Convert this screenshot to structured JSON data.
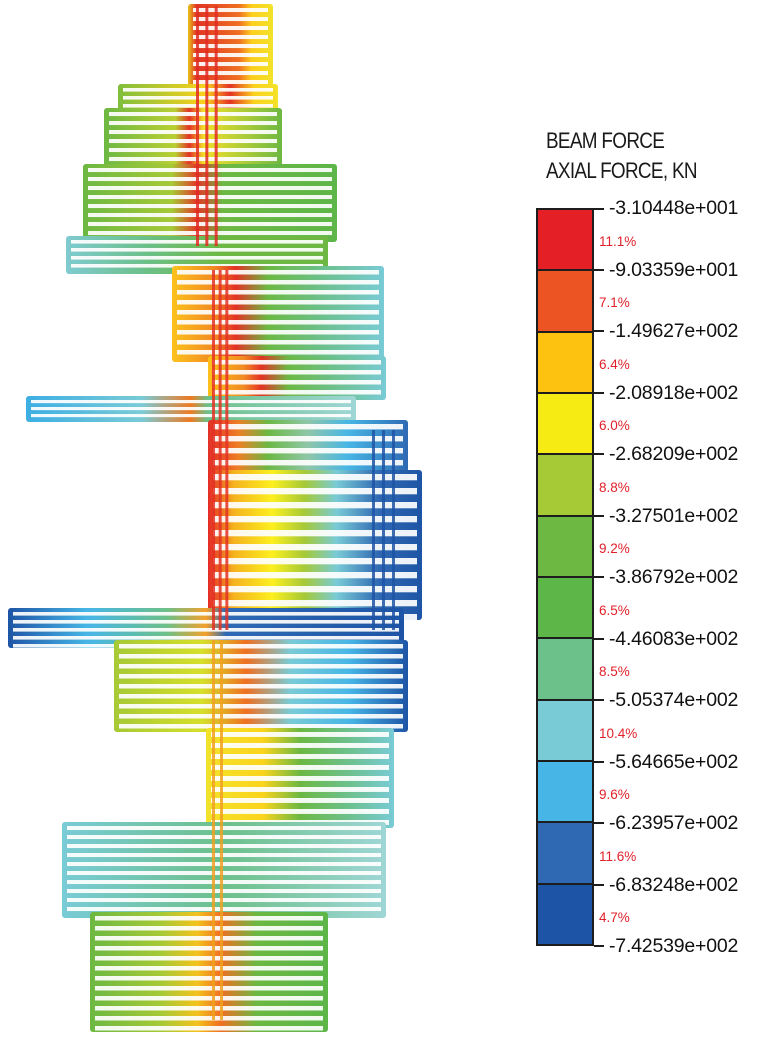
{
  "legend": {
    "title_line1": "BEAM FORCE",
    "title_line2": "AXIAL FORCE, KN",
    "bands": [
      {
        "color": "#e41f26",
        "percent": "11.1%"
      },
      {
        "color": "#ec5523",
        "percent": "7.1%"
      },
      {
        "color": "#fcc20f",
        "percent": "6.4%"
      },
      {
        "color": "#f6ec13",
        "percent": "6.0%"
      },
      {
        "color": "#a6c936",
        "percent": "8.8%"
      },
      {
        "color": "#6cb843",
        "percent": "9.2%"
      },
      {
        "color": "#5db648",
        "percent": "6.5%"
      },
      {
        "color": "#6cc08a",
        "percent": "8.5%"
      },
      {
        "color": "#79cbd6",
        "percent": "10.4%"
      },
      {
        "color": "#47b6e6",
        "percent": "9.6%"
      },
      {
        "color": "#2f69b3",
        "percent": "11.6%"
      },
      {
        "color": "#1e54a5",
        "percent": "4.7%"
      }
    ],
    "ticks": [
      "-3.10448e+001",
      "-9.03359e+001",
      "-1.49627e+002",
      "-2.08918e+002",
      "-2.68209e+002",
      "-3.27501e+002",
      "-3.86792e+002",
      "-4.46083e+002",
      "-5.05374e+002",
      "-5.64665e+002",
      "-6.23957e+002",
      "-6.83248e+002",
      "-7.42539e+002"
    ]
  }
}
